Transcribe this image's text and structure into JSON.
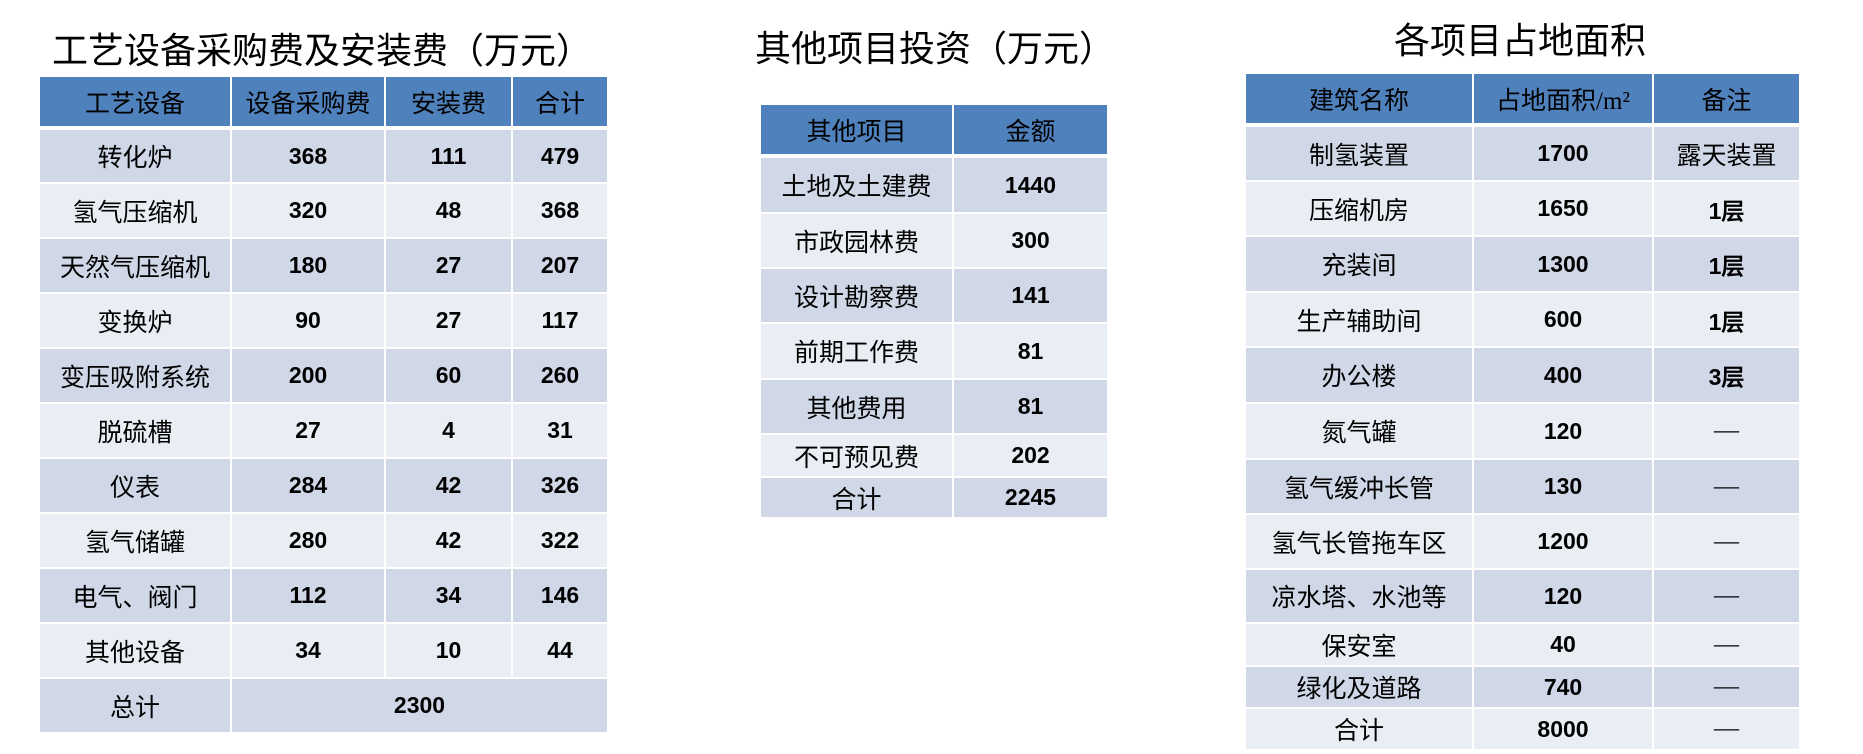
{
  "equipment": {
    "title": "工艺设备采购费及安装费（万元）",
    "headers": [
      "工艺设备",
      "设备采购费",
      "安装费",
      "合计"
    ],
    "rows": [
      [
        "转化炉",
        "368",
        "111",
        "479"
      ],
      [
        "氢气压缩机",
        "320",
        "48",
        "368"
      ],
      [
        "天然气压缩机",
        "180",
        "27",
        "207"
      ],
      [
        "变换炉",
        "90",
        "27",
        "117"
      ],
      [
        "变压吸附系统",
        "200",
        "60",
        "260"
      ],
      [
        "脱硫槽",
        "27",
        "4",
        "31"
      ],
      [
        "仪表",
        "284",
        "42",
        "326"
      ],
      [
        "氢气储罐",
        "280",
        "42",
        "322"
      ],
      [
        "电气、阀门",
        "112",
        "34",
        "146"
      ],
      [
        "其他设备",
        "34",
        "10",
        "44"
      ]
    ],
    "total_label": "总计",
    "total_value": "2300"
  },
  "other": {
    "title": "其他项目投资（万元）",
    "headers": [
      "其他项目",
      "金额"
    ],
    "rows": [
      [
        "土地及土建费",
        "1440"
      ],
      [
        "市政园林费",
        "300"
      ],
      [
        "设计勘察费",
        "141"
      ],
      [
        "前期工作费",
        "81"
      ],
      [
        "其他费用",
        "81"
      ],
      [
        "不可预见费",
        "202"
      ],
      [
        "合计",
        "2245"
      ]
    ]
  },
  "area": {
    "title": "各项目占地面积",
    "headers": [
      "建筑名称",
      "占地面积/m²",
      "备注"
    ],
    "rows": [
      [
        "制氢装置",
        "1700",
        "露天装置"
      ],
      [
        "压缩机房",
        "1650",
        "1层"
      ],
      [
        "充装间",
        "1300",
        "1层"
      ],
      [
        "生产辅助间",
        "600",
        "1层"
      ],
      [
        "办公楼",
        "400",
        "3层"
      ],
      [
        "氮气罐",
        "120",
        "—"
      ],
      [
        "氢气缓冲长管",
        "130",
        "—"
      ],
      [
        "氢气长管拖车区",
        "1200",
        "—"
      ],
      [
        "凉水塔、水池等",
        "120",
        "—"
      ],
      [
        "保安室",
        "40",
        "—"
      ],
      [
        "绿化及道路",
        "740",
        "—"
      ],
      [
        "合计",
        "8000",
        "—"
      ]
    ]
  },
  "colors": {
    "header": "#4f81bd",
    "row_odd": "#d0d8e8",
    "row_even": "#e9edf4"
  }
}
